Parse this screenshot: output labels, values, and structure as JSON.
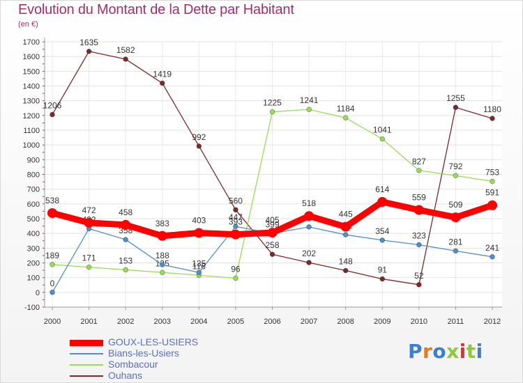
{
  "chart_data": {
    "type": "line",
    "title": "Evolution du Montant de la Dette par Habitant",
    "subtitle": "(en €)",
    "x": [
      "2000",
      "2001",
      "2002",
      "2003",
      "2004",
      "2005",
      "2006",
      "2007",
      "2008",
      "2009",
      "2010",
      "2011",
      "2012"
    ],
    "ylim": [
      -100,
      1700
    ],
    "yticks": [
      -100,
      0,
      100,
      200,
      300,
      400,
      500,
      600,
      700,
      800,
      900,
      1000,
      1100,
      1200,
      1300,
      1400,
      1500,
      1600,
      1700
    ],
    "grid": true,
    "legend_position": "bottom-left",
    "series": [
      {
        "name": "GOUX-LES-USIERS",
        "color": "#ff0000",
        "values": [
          538,
          472,
          458,
          383,
          403,
          393,
          405,
          518,
          445,
          614,
          559,
          509,
          591
        ]
      },
      {
        "name": "Bians-les-Usiers",
        "color": "#4f8fc8",
        "values": [
          0,
          432,
          358,
          188,
          135,
          447,
          399,
          444,
          391,
          354,
          323,
          281,
          241
        ]
      },
      {
        "name": "Sombacour",
        "color": "#99dd55",
        "values": [
          189,
          171,
          153,
          135,
          116,
          96,
          1225,
          1241,
          1184,
          1041,
          827,
          792,
          753
        ]
      },
      {
        "name": "Ouhans",
        "color": "#7a2a2a",
        "values": [
          1206,
          1635,
          1582,
          1419,
          992,
          560,
          258,
          202,
          148,
          91,
          52,
          1255,
          1180
        ]
      }
    ]
  },
  "logo": {
    "letters": [
      "P",
      "r",
      "o",
      "x",
      "i",
      "t",
      "i"
    ],
    "colors": [
      "#3b7fd4",
      "#e87a1c",
      "#3b7fd4",
      "#8ecb3a",
      "#e0302f",
      "#8ecb3a",
      "#3b7fd4"
    ]
  }
}
